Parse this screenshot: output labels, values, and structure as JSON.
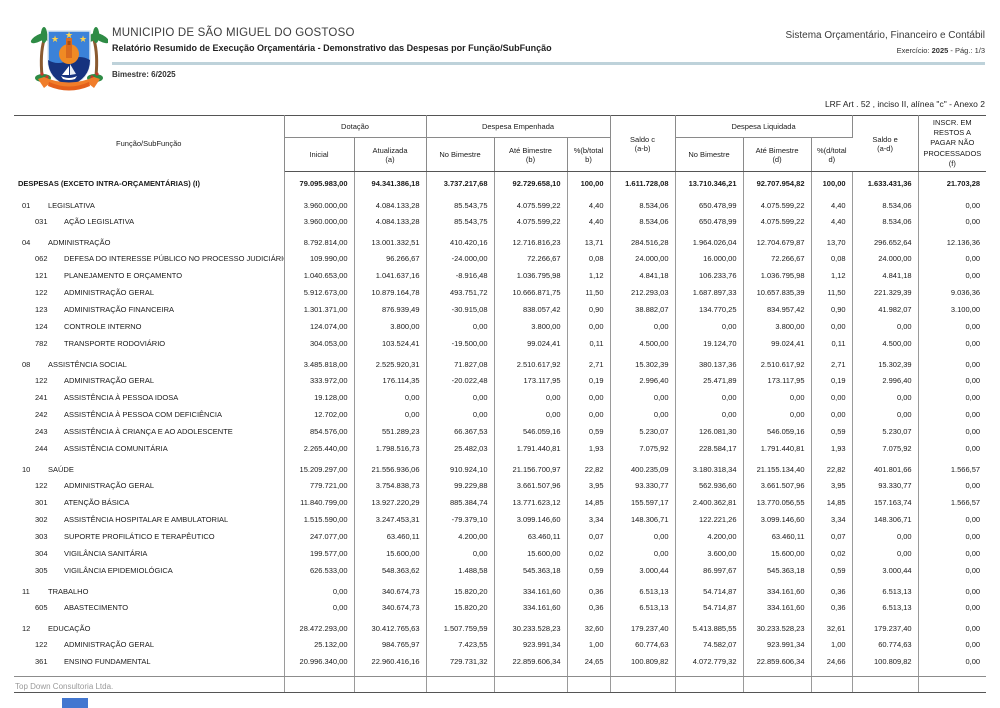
{
  "header": {
    "municipality": "MUNICIPIO DE SÃO MIGUEL DO GOSTOSO",
    "report_title": "Relatório Resumido de Execução Orçamentária - Demonstrativo das Despesas por Função/SubFunção",
    "bimestre": "Bimestre: 6/2025",
    "system_name": "Sistema Orçamentário, Financeiro e Contábil",
    "exercicio_label": "Exercício: ",
    "exercicio_value": "2025",
    "exercicio_sep": " -  ",
    "page_label": "Pág.: 1/3",
    "lrf_note": "LRF Art . 52 , inciso II, alínea \"c\" - Anexo 2"
  },
  "table_header": {
    "funcao": "Função/SubFunção",
    "dotacao_group": "Dotação",
    "empenhada_group": "Despesa Empenhada",
    "liquidada_group": "Despesa Liquidada",
    "inicial": "Inicial",
    "atualizada": "Atualizada",
    "atualizada_ref": "(a)",
    "no_bimestre_emp": "No Bimestre",
    "ate_bimestre_emp": "Até Bimestre",
    "ate_bimestre_emp_ref": "(b)",
    "pct_emp": "%(b/total b)",
    "saldo_c": "Saldo c",
    "saldo_c_ref": "(a-b)",
    "no_bimestre_liq": "No Bimestre",
    "ate_bimestre_liq": "Até Bimestre",
    "ate_bimestre_liq_ref": "(d)",
    "pct_liq": "%(d/total d)",
    "saldo_e": "Saldo e",
    "saldo_e_ref": "(a-d)",
    "inscr_restos": "INSCR. EM RESTOS A PAGAR NÃO PROCESSADOS (f)"
  },
  "rows": [
    {
      "code": "",
      "name": "DESPESAS (EXCETO INTRA-ORÇAMENTÁRIAS) (I)",
      "level": "total",
      "values": [
        "79.095.983,00",
        "94.341.386,18",
        "3.737.217,68",
        "92.729.658,10",
        "100,00",
        "1.611.728,08",
        "13.710.346,21",
        "92.707.954,82",
        "100,00",
        "1.633.431,36",
        "21.703,28"
      ]
    },
    {
      "code": "01",
      "name": "LEGISLATIVA",
      "level": "funcao",
      "values": [
        "3.960.000,00",
        "4.084.133,28",
        "85.543,75",
        "4.075.599,22",
        "4,40",
        "8.534,06",
        "650.478,99",
        "4.075.599,22",
        "4,40",
        "8.534,06",
        "0,00"
      ]
    },
    {
      "code": "031",
      "name": "AÇÃO LEGISLATIVA",
      "level": "sub",
      "values": [
        "3.960.000,00",
        "4.084.133,28",
        "85.543,75",
        "4.075.599,22",
        "4,40",
        "8.534,06",
        "650.478,99",
        "4.075.599,22",
        "4,40",
        "8.534,06",
        "0,00"
      ]
    },
    {
      "code": "04",
      "name": "ADMINISTRAÇÃO",
      "level": "funcao",
      "values": [
        "8.792.814,00",
        "13.001.332,51",
        "410.420,16",
        "12.716.816,23",
        "13,71",
        "284.516,28",
        "1.964.026,04",
        "12.704.679,87",
        "13,70",
        "296.652,64",
        "12.136,36"
      ]
    },
    {
      "code": "062",
      "name": "DEFESA DO INTERESSE PÚBLICO NO PROCESSO JUDICIÁRIO",
      "level": "sub",
      "values": [
        "109.990,00",
        "96.266,67",
        "-24.000,00",
        "72.266,67",
        "0,08",
        "24.000,00",
        "16.000,00",
        "72.266,67",
        "0,08",
        "24.000,00",
        "0,00"
      ]
    },
    {
      "code": "121",
      "name": "PLANEJAMENTO E ORÇAMENTO",
      "level": "sub",
      "values": [
        "1.040.653,00",
        "1.041.637,16",
        "-8.916,48",
        "1.036.795,98",
        "1,12",
        "4.841,18",
        "106.233,76",
        "1.036.795,98",
        "1,12",
        "4.841,18",
        "0,00"
      ]
    },
    {
      "code": "122",
      "name": "ADMINISTRAÇÃO GERAL",
      "level": "sub",
      "values": [
        "5.912.673,00",
        "10.879.164,78",
        "493.751,72",
        "10.666.871,75",
        "11,50",
        "212.293,03",
        "1.687.897,33",
        "10.657.835,39",
        "11,50",
        "221.329,39",
        "9.036,36"
      ]
    },
    {
      "code": "123",
      "name": "ADMINISTRAÇÃO FINANCEIRA",
      "level": "sub",
      "values": [
        "1.301.371,00",
        "876.939,49",
        "-30.915,08",
        "838.057,42",
        "0,90",
        "38.882,07",
        "134.770,25",
        "834.957,42",
        "0,90",
        "41.982,07",
        "3.100,00"
      ]
    },
    {
      "code": "124",
      "name": "CONTROLE INTERNO",
      "level": "sub",
      "values": [
        "124.074,00",
        "3.800,00",
        "0,00",
        "3.800,00",
        "0,00",
        "0,00",
        "0,00",
        "3.800,00",
        "0,00",
        "0,00",
        "0,00"
      ]
    },
    {
      "code": "782",
      "name": "TRANSPORTE RODOVIÁRIO",
      "level": "sub",
      "values": [
        "304.053,00",
        "103.524,41",
        "-19.500,00",
        "99.024,41",
        "0,11",
        "4.500,00",
        "19.124,70",
        "99.024,41",
        "0,11",
        "4.500,00",
        "0,00"
      ]
    },
    {
      "code": "08",
      "name": "ASSISTÊNCIA SOCIAL",
      "level": "funcao",
      "values": [
        "3.485.818,00",
        "2.525.920,31",
        "71.827,08",
        "2.510.617,92",
        "2,71",
        "15.302,39",
        "380.137,36",
        "2.510.617,92",
        "2,71",
        "15.302,39",
        "0,00"
      ]
    },
    {
      "code": "122",
      "name": "ADMINISTRAÇÃO GERAL",
      "level": "sub",
      "values": [
        "333.972,00",
        "176.114,35",
        "-20.022,48",
        "173.117,95",
        "0,19",
        "2.996,40",
        "25.471,89",
        "173.117,95",
        "0,19",
        "2.996,40",
        "0,00"
      ]
    },
    {
      "code": "241",
      "name": "ASSISTÊNCIA À PESSOA IDOSA",
      "level": "sub",
      "values": [
        "19.128,00",
        "0,00",
        "0,00",
        "0,00",
        "0,00",
        "0,00",
        "0,00",
        "0,00",
        "0,00",
        "0,00",
        "0,00"
      ]
    },
    {
      "code": "242",
      "name": "ASSISTÊNCIA À PESSOA COM DEFICIÊNCIA",
      "level": "sub",
      "values": [
        "12.702,00",
        "0,00",
        "0,00",
        "0,00",
        "0,00",
        "0,00",
        "0,00",
        "0,00",
        "0,00",
        "0,00",
        "0,00"
      ]
    },
    {
      "code": "243",
      "name": "ASSISTÊNCIA À CRIANÇA E AO ADOLESCENTE",
      "level": "sub",
      "values": [
        "854.576,00",
        "551.289,23",
        "66.367,53",
        "546.059,16",
        "0,59",
        "5.230,07",
        "126.081,30",
        "546.059,16",
        "0,59",
        "5.230,07",
        "0,00"
      ]
    },
    {
      "code": "244",
      "name": "ASSISTÊNCIA COMUNITÁRIA",
      "level": "sub",
      "values": [
        "2.265.440,00",
        "1.798.516,73",
        "25.482,03",
        "1.791.440,81",
        "1,93",
        "7.075,92",
        "228.584,17",
        "1.791.440,81",
        "1,93",
        "7.075,92",
        "0,00"
      ]
    },
    {
      "code": "10",
      "name": "SAÚDE",
      "level": "funcao",
      "values": [
        "15.209.297,00",
        "21.556.936,06",
        "910.924,10",
        "21.156.700,97",
        "22,82",
        "400.235,09",
        "3.180.318,34",
        "21.155.134,40",
        "22,82",
        "401.801,66",
        "1.566,57"
      ]
    },
    {
      "code": "122",
      "name": "ADMINISTRAÇÃO GERAL",
      "level": "sub",
      "values": [
        "779.721,00",
        "3.754.838,73",
        "99.229,88",
        "3.661.507,96",
        "3,95",
        "93.330,77",
        "562.936,60",
        "3.661.507,96",
        "3,95",
        "93.330,77",
        "0,00"
      ]
    },
    {
      "code": "301",
      "name": "ATENÇÃO BÁSICA",
      "level": "sub",
      "values": [
        "11.840.799,00",
        "13.927.220,29",
        "885.384,74",
        "13.771.623,12",
        "14,85",
        "155.597,17",
        "2.400.362,81",
        "13.770.056,55",
        "14,85",
        "157.163,74",
        "1.566,57"
      ]
    },
    {
      "code": "302",
      "name": "ASSISTÊNCIA HOSPITALAR E AMBULATORIAL",
      "level": "sub",
      "values": [
        "1.515.590,00",
        "3.247.453,31",
        "-79.379,10",
        "3.099.146,60",
        "3,34",
        "148.306,71",
        "122.221,26",
        "3.099.146,60",
        "3,34",
        "148.306,71",
        "0,00"
      ]
    },
    {
      "code": "303",
      "name": "SUPORTE PROFILÁTICO E TERAPÊUTICO",
      "level": "sub",
      "values": [
        "247.077,00",
        "63.460,11",
        "4.200,00",
        "63.460,11",
        "0,07",
        "0,00",
        "4.200,00",
        "63.460,11",
        "0,07",
        "0,00",
        "0,00"
      ]
    },
    {
      "code": "304",
      "name": "VIGILÂNCIA SANITÁRIA",
      "level": "sub",
      "values": [
        "199.577,00",
        "15.600,00",
        "0,00",
        "15.600,00",
        "0,02",
        "0,00",
        "3.600,00",
        "15.600,00",
        "0,02",
        "0,00",
        "0,00"
      ]
    },
    {
      "code": "305",
      "name": "VIGILÂNCIA EPIDEMIOLÓGICA",
      "level": "sub",
      "values": [
        "626.533,00",
        "548.363,62",
        "1.488,58",
        "545.363,18",
        "0,59",
        "3.000,44",
        "86.997,67",
        "545.363,18",
        "0,59",
        "3.000,44",
        "0,00"
      ]
    },
    {
      "code": "11",
      "name": "TRABALHO",
      "level": "funcao",
      "values": [
        "0,00",
        "340.674,73",
        "15.820,20",
        "334.161,60",
        "0,36",
        "6.513,13",
        "54.714,87",
        "334.161,60",
        "0,36",
        "6.513,13",
        "0,00"
      ]
    },
    {
      "code": "605",
      "name": "ABASTECIMENTO",
      "level": "sub",
      "values": [
        "0,00",
        "340.674,73",
        "15.820,20",
        "334.161,60",
        "0,36",
        "6.513,13",
        "54.714,87",
        "334.161,60",
        "0,36",
        "6.513,13",
        "0,00"
      ]
    },
    {
      "code": "12",
      "name": "EDUCAÇÃO",
      "level": "funcao",
      "values": [
        "28.472.293,00",
        "30.412.765,63",
        "1.507.759,59",
        "30.233.528,23",
        "32,60",
        "179.237,40",
        "5.413.885,55",
        "30.233.528,23",
        "32,61",
        "179.237,40",
        "0,00"
      ]
    },
    {
      "code": "122",
      "name": "ADMINISTRAÇÃO GERAL",
      "level": "sub",
      "values": [
        "25.132,00",
        "984.765,97",
        "7.423,55",
        "923.991,34",
        "1,00",
        "60.774,63",
        "74.582,07",
        "923.991,34",
        "1,00",
        "60.774,63",
        "0,00"
      ]
    },
    {
      "code": "361",
      "name": "ENSINO FUNDAMENTAL",
      "level": "sub",
      "values": [
        "20.996.340,00",
        "22.960.416,16",
        "729.731,32",
        "22.859.606,34",
        "24,65",
        "100.809,82",
        "4.072.779,32",
        "22.859.606,34",
        "24,66",
        "100.809,82",
        "0,00"
      ]
    }
  ],
  "footer": {
    "company": "Top Down Consultoria Ltda."
  }
}
